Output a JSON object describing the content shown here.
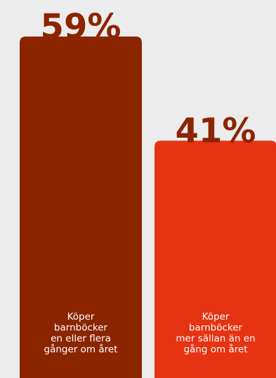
{
  "chart_data": {
    "type": "bar",
    "categories": [
      "Köper barnböcker en eller flera gånger om året",
      "Köper barnböcker mer sällan än en gång om året"
    ],
    "values": [
      59,
      41
    ],
    "value_labels": [
      "59%",
      "41%"
    ],
    "label_lines": [
      [
        "Köper",
        "barnböcker",
        "en eller flera",
        "gånger om året"
      ],
      [
        "Köper",
        "barnböcker",
        "mer sällan än en",
        "gång om året"
      ]
    ],
    "ylim": [
      0,
      59
    ],
    "grid": false,
    "legend": "none",
    "colors": {
      "background": "#ececec",
      "bars": [
        "#8b2500",
        "#e63312"
      ],
      "value_text": "#8b2500",
      "label_text": "#ffffff"
    }
  }
}
